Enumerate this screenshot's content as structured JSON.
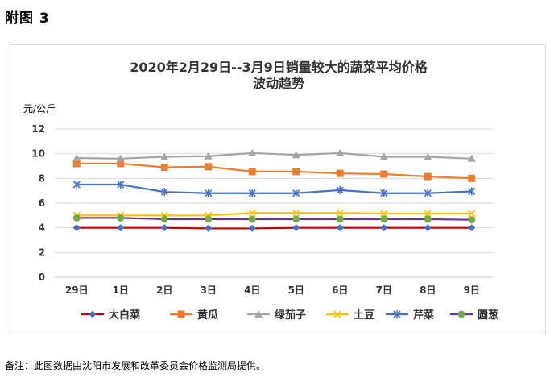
{
  "figure_label": "附图 3",
  "footnote": "备注：此图数据由沈阳市发展和改革委员会价格监测局提供。",
  "chart_data": {
    "type": "line",
    "title": [
      "2020年2月29日--3月9日销量较大的蔬菜平均价格",
      "波动趋势"
    ],
    "ylabel": "元/公斤",
    "xlabel": "",
    "categories": [
      "29日",
      "1日",
      "2日",
      "3日",
      "4日",
      "5日",
      "6日",
      "7日",
      "8日",
      "9日"
    ],
    "y_ticks": [
      "0",
      "2",
      "4",
      "6",
      "8",
      "10",
      "12"
    ],
    "ylim": [
      0,
      12
    ],
    "grid": "horizontal",
    "legend_position": "bottom",
    "series": [
      {
        "name": "大白菜",
        "color": "#c00000",
        "marker": "diamond",
        "marker_color": "#4472c4",
        "values": [
          4.0,
          4.0,
          4.0,
          3.95,
          3.95,
          4.0,
          4.0,
          4.0,
          4.0,
          4.0
        ]
      },
      {
        "name": "黄瓜",
        "color": "#ed7d31",
        "marker": "square",
        "marker_color": "#ed7d31",
        "values": [
          9.2,
          9.2,
          8.9,
          8.95,
          8.55,
          8.55,
          8.4,
          8.35,
          8.15,
          8.0
        ]
      },
      {
        "name": "绿茄子",
        "color": "#a5a5a5",
        "marker": "triangle",
        "marker_color": "#a5a5a5",
        "values": [
          9.65,
          9.6,
          9.75,
          9.8,
          10.05,
          9.9,
          10.05,
          9.75,
          9.75,
          9.6
        ]
      },
      {
        "name": "土豆",
        "color": "#ffc000",
        "marker": "x",
        "marker_color": "#ffc000",
        "values": [
          5.0,
          5.0,
          5.0,
          5.0,
          5.2,
          5.2,
          5.2,
          5.15,
          5.15,
          5.15
        ]
      },
      {
        "name": "芹菜",
        "color": "#4472c4",
        "marker": "star",
        "marker_color": "#4472c4",
        "values": [
          7.5,
          7.5,
          6.9,
          6.8,
          6.8,
          6.8,
          7.05,
          6.8,
          6.8,
          6.95
        ]
      },
      {
        "name": "圆葱",
        "color": "#7030a0",
        "marker": "circle",
        "marker_color": "#70ad47",
        "values": [
          4.8,
          4.8,
          4.7,
          4.7,
          4.7,
          4.7,
          4.7,
          4.7,
          4.7,
          4.65
        ]
      }
    ]
  }
}
